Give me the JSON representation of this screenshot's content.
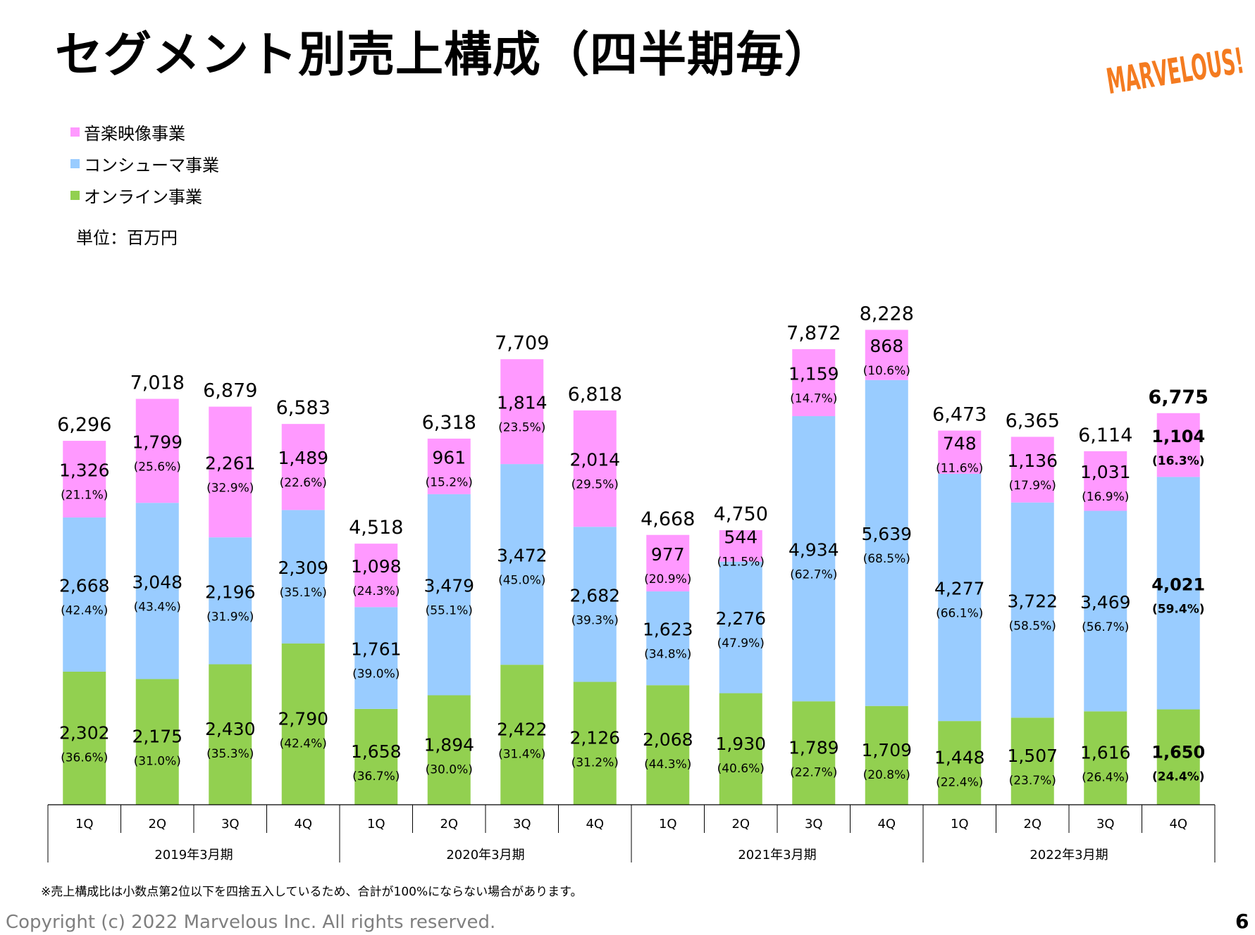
{
  "slide": {
    "title": "セグメント別売上構成（四半期毎）",
    "unit_label": "単位：百万円",
    "footnote": "※売上構成比は小数点第2位以下を四捨五入しているため、合計が100%にならない場合があります。",
    "copyright": "Copyright (c) 2022 Marvelous Inc. All rights reserved.",
    "page_number": "6",
    "logo_text": "MARVELOUS!",
    "logo_color": "#f47b20"
  },
  "chart_data": {
    "type": "bar",
    "stacked": true,
    "categories": [
      "1Q",
      "2Q",
      "3Q",
      "4Q",
      "1Q",
      "2Q",
      "3Q",
      "4Q",
      "1Q",
      "2Q",
      "3Q",
      "4Q",
      "1Q",
      "2Q",
      "3Q",
      "4Q"
    ],
    "groups": [
      {
        "label": "2019年3月期",
        "start": 0,
        "end": 3
      },
      {
        "label": "2020年3月期",
        "start": 4,
        "end": 7
      },
      {
        "label": "2021年3月期",
        "start": 8,
        "end": 11
      },
      {
        "label": "2022年3月期",
        "start": 12,
        "end": 15
      }
    ],
    "series": [
      {
        "name": "オンライン事業",
        "color": "#92d050",
        "values": [
          2302,
          2175,
          2430,
          2790,
          1658,
          1894,
          2422,
          2126,
          2068,
          1930,
          1789,
          1709,
          1448,
          1507,
          1616,
          1650
        ],
        "value_labels": [
          "2,302",
          "2,175",
          "2,430",
          "2,790",
          "1,658",
          "1,894",
          "2,422",
          "2,126",
          "2,068",
          "1,930",
          "1,789",
          "1,709",
          "1,448",
          "1,507",
          "1,616",
          "1,650"
        ],
        "percent_labels": [
          "(36.6%)",
          "(31.0%)",
          "(35.3%)",
          "(42.4%)",
          "(36.7%)",
          "(30.0%)",
          "(31.4%)",
          "(31.2%)",
          "(44.3%)",
          "(40.6%)",
          "(22.7%)",
          "(20.8%)",
          "(22.4%)",
          "(23.7%)",
          "(26.4%)",
          "(24.4%)"
        ]
      },
      {
        "name": "コンシューマ事業",
        "color": "#99ccff",
        "values": [
          2668,
          3048,
          2196,
          2309,
          1761,
          3479,
          3472,
          2682,
          1623,
          2276,
          4934,
          5639,
          4277,
          3722,
          3469,
          4021
        ],
        "value_labels": [
          "2,668",
          "3,048",
          "2,196",
          "2,309",
          "1,761",
          "3,479",
          "3,472",
          "2,682",
          "1,623",
          "2,276",
          "4,934",
          "5,639",
          "4,277",
          "3,722",
          "3,469",
          "4,021"
        ],
        "percent_labels": [
          "(42.4%)",
          "(43.4%)",
          "(31.9%)",
          "(35.1%)",
          "(39.0%)",
          "(55.1%)",
          "(45.0%)",
          "(39.3%)",
          "(34.8%)",
          "(47.9%)",
          "(62.7%)",
          "(68.5%)",
          "(66.1%)",
          "(58.5%)",
          "(56.7%)",
          "(59.4%)"
        ]
      },
      {
        "name": "音楽映像事業",
        "color": "#ff99ff",
        "values": [
          1326,
          1799,
          2261,
          1489,
          1098,
          961,
          1814,
          2014,
          977,
          544,
          1159,
          868,
          748,
          1136,
          1031,
          1104
        ],
        "value_labels": [
          "1,326",
          "1,799",
          "2,261",
          "1,489",
          "1,098",
          "961",
          "1,814",
          "2,014",
          "977",
          "544",
          "1,159",
          "868",
          "748",
          "1,136",
          "1,031",
          "1,104"
        ],
        "percent_labels": [
          "(21.1%)",
          "(25.6%)",
          "(32.9%)",
          "(22.6%)",
          "(24.3%)",
          "(15.2%)",
          "(23.5%)",
          "(29.5%)",
          "(20.9%)",
          "(11.5%)",
          "(14.7%)",
          "(10.6%)",
          "(11.6%)",
          "(17.9%)",
          "(16.9%)",
          "(16.3%)"
        ]
      }
    ],
    "totals": [
      6296,
      7018,
      6879,
      6583,
      4518,
      6318,
      7709,
      6818,
      4668,
      4750,
      7872,
      8228,
      6473,
      6365,
      6114,
      6775
    ],
    "total_labels": [
      "6,296",
      "7,018",
      "6,879",
      "6,583",
      "4,518",
      "6,318",
      "7,709",
      "6,818",
      "4,668",
      "4,750",
      "7,872",
      "8,228",
      "6,473",
      "6,365",
      "6,114",
      "6,775"
    ],
    "highlight_index": 15,
    "legend_order": [
      "音楽映像事業",
      "コンシューマ事業",
      "オンライン事業"
    ],
    "legend_placement": "top-left",
    "grid": false
  }
}
